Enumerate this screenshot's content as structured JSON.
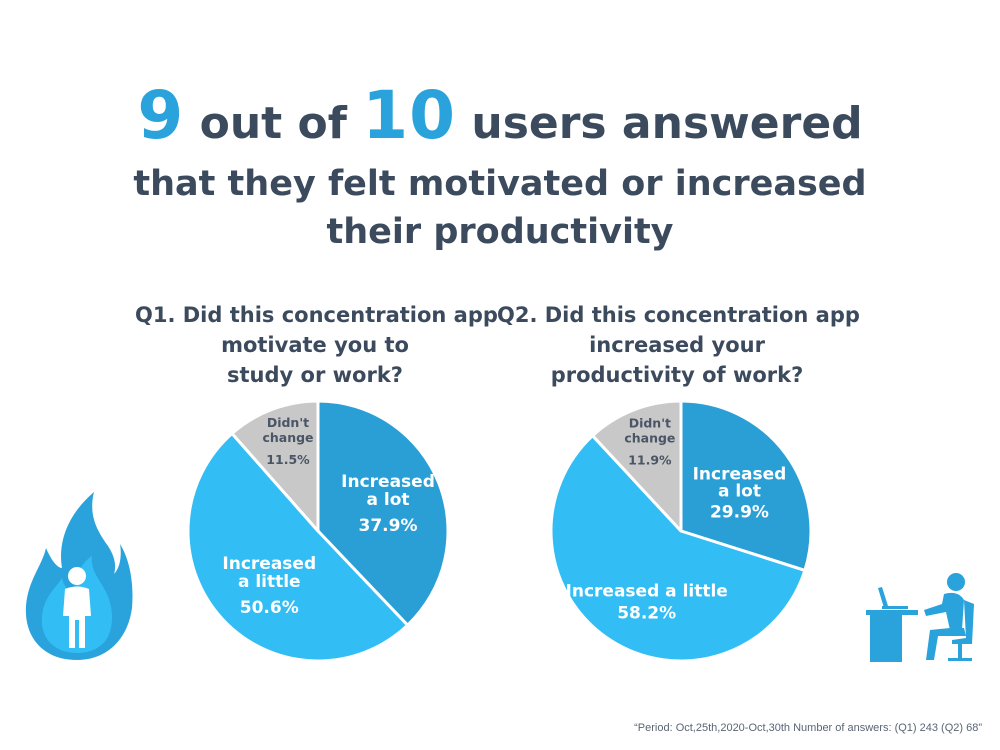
{
  "headline": {
    "num1": "9",
    "text1": " out of ",
    "num2": "10",
    "text2": " users answered",
    "line2": "that they felt motivated or increased",
    "line3": "their productivity"
  },
  "footnote": "“Period: Oct,25th,2020-Oct,30th Number of answers: (Q1) 243 (Q2) 68”",
  "colors": {
    "increased_a_lot": "#2a9fd6",
    "increased_a_little": "#33bdf5",
    "didnt_change": "#c8c8c8",
    "accent": "#2aa3dc",
    "text": "#3c4a5e"
  },
  "icons": [
    "fire-person-icon",
    "desk-worker-icon"
  ],
  "chart_data": [
    {
      "type": "pie",
      "title": [
        "Q1. Did this concentration app",
        "motivate you to",
        "study or work?"
      ],
      "slices": [
        {
          "label": [
            "Increased",
            "a lot"
          ],
          "value": 37.9,
          "display": "37.9%",
          "color": "#2a9fd6"
        },
        {
          "label": [
            "Increased",
            "a little"
          ],
          "value": 50.6,
          "display": "50.6%",
          "color": "#33bdf5"
        },
        {
          "label": [
            "Didn't",
            "change"
          ],
          "value": 11.5,
          "display": "11.5%",
          "color": "#c8c8c8"
        }
      ]
    },
    {
      "type": "pie",
      "title": [
        "Q2. Did this concentration app",
        "increased your",
        "productivity of work?"
      ],
      "slices": [
        {
          "label": [
            "Increased",
            "a lot"
          ],
          "value": 29.9,
          "display": "29.9%",
          "color": "#2a9fd6"
        },
        {
          "label": [
            "Increased a little"
          ],
          "value": 58.2,
          "display": "58.2%",
          "color": "#33bdf5"
        },
        {
          "label": [
            "Didn't",
            "change"
          ],
          "value": 11.9,
          "display": "11.9%",
          "color": "#c8c8c8"
        }
      ]
    }
  ]
}
